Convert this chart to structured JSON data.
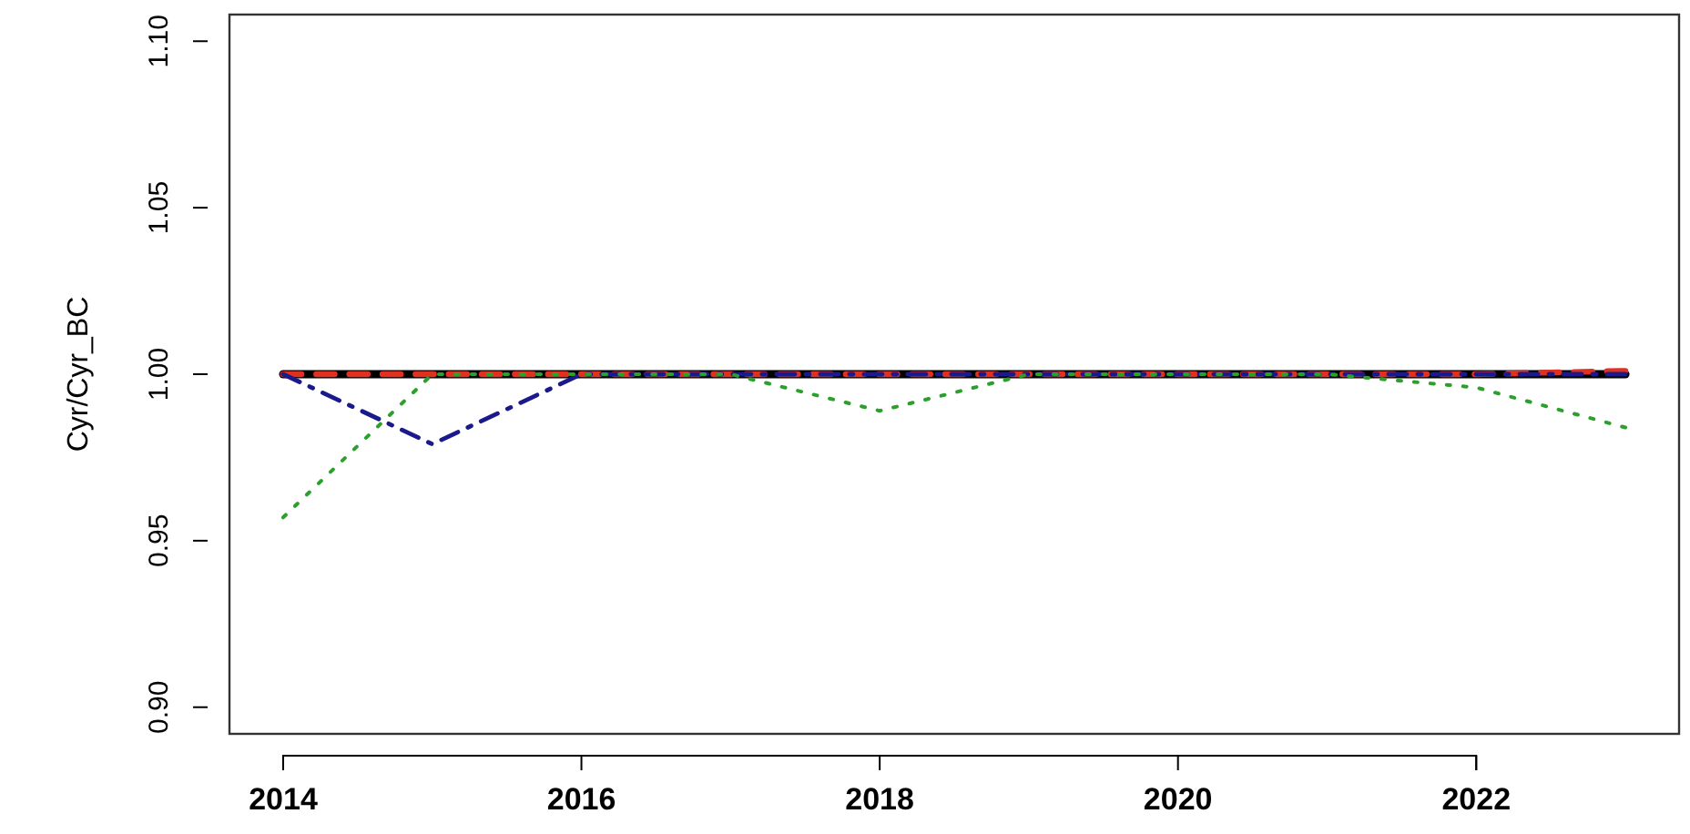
{
  "chart_data": {
    "type": "line",
    "ylabel": "Cyr/Cyr_BC",
    "x": [
      2014,
      2015,
      2016,
      2017,
      2018,
      2019,
      2020,
      2021,
      2022,
      2023
    ],
    "xlim": [
      2013.64,
      2023.36
    ],
    "xticks": [
      2014,
      2016,
      2018,
      2020,
      2022
    ],
    "ylim": [
      0.892,
      1.108
    ],
    "yticks": [
      {
        "value": 0.9,
        "label": "0.90"
      },
      {
        "value": 0.95,
        "label": "0.95"
      },
      {
        "value": 1.0,
        "label": "1.00"
      },
      {
        "value": 1.05,
        "label": "1.05"
      },
      {
        "value": 1.1,
        "label": "1.10"
      }
    ],
    "series": [
      {
        "color": "#000000",
        "line_style": "solid",
        "values": [
          1.0,
          1.0,
          1.0,
          1.0,
          1.0,
          1.0,
          1.0,
          1.0,
          1.0,
          1.0
        ]
      },
      {
        "color": "#e03020",
        "line_style": "dashed",
        "values": [
          1.0,
          1.0,
          1.0,
          1.0,
          1.0,
          1.0,
          1.0,
          1.0,
          1.0,
          1.001
        ]
      },
      {
        "color": "#1a1a8c",
        "line_style": "dashdot",
        "values": [
          1.0,
          0.979,
          1.0,
          1.0,
          1.0,
          1.0,
          1.0,
          1.0,
          1.0,
          1.0
        ]
      },
      {
        "color": "#2ca02c",
        "line_style": "dotted",
        "values": [
          0.957,
          1.0,
          1.0,
          1.0,
          0.989,
          1.0,
          1.0,
          1.0,
          0.996,
          0.984
        ]
      }
    ]
  }
}
